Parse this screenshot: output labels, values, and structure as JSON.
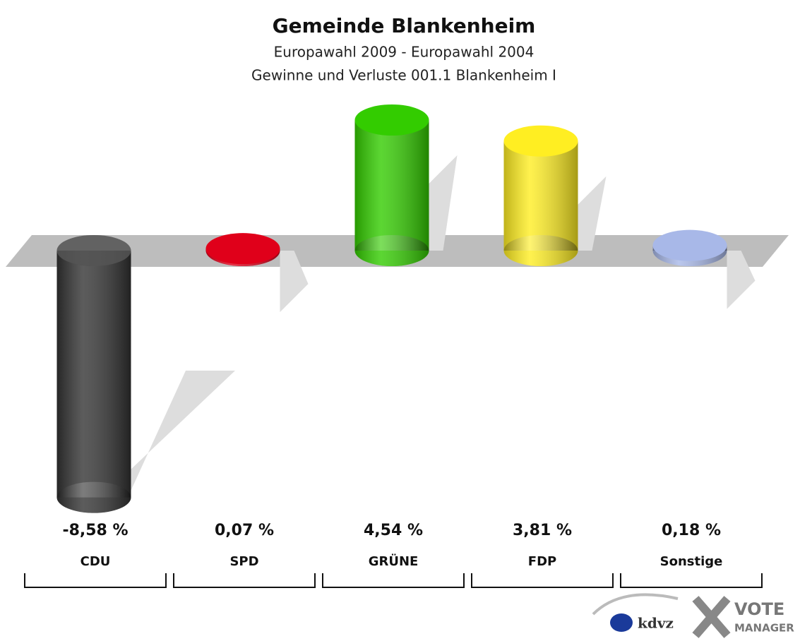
{
  "chart_data": {
    "type": "bar3d",
    "title": "Gemeinde Blankenheim",
    "subtitle": "Europawahl 2009 - Europawahl 2004",
    "subtitle2": "Gewinne und Verluste 001.1 Blankenheim I",
    "categories": [
      "CDU",
      "SPD",
      "GRÜNE",
      "FDP",
      "Sonstige"
    ],
    "values": [
      -8.58,
      0.07,
      4.54,
      3.81,
      0.18
    ],
    "value_labels": [
      "-8,58 %",
      "0,07 %",
      "4,54 %",
      "3,81 %",
      "0,18 %"
    ],
    "colors": [
      "#333333",
      "#e0001a",
      "#33cc00",
      "#ffee22",
      "#a8b8e8"
    ]
  },
  "logo": {
    "brand": "kdvz",
    "product": "VOTE",
    "product2": "MANAGER"
  }
}
